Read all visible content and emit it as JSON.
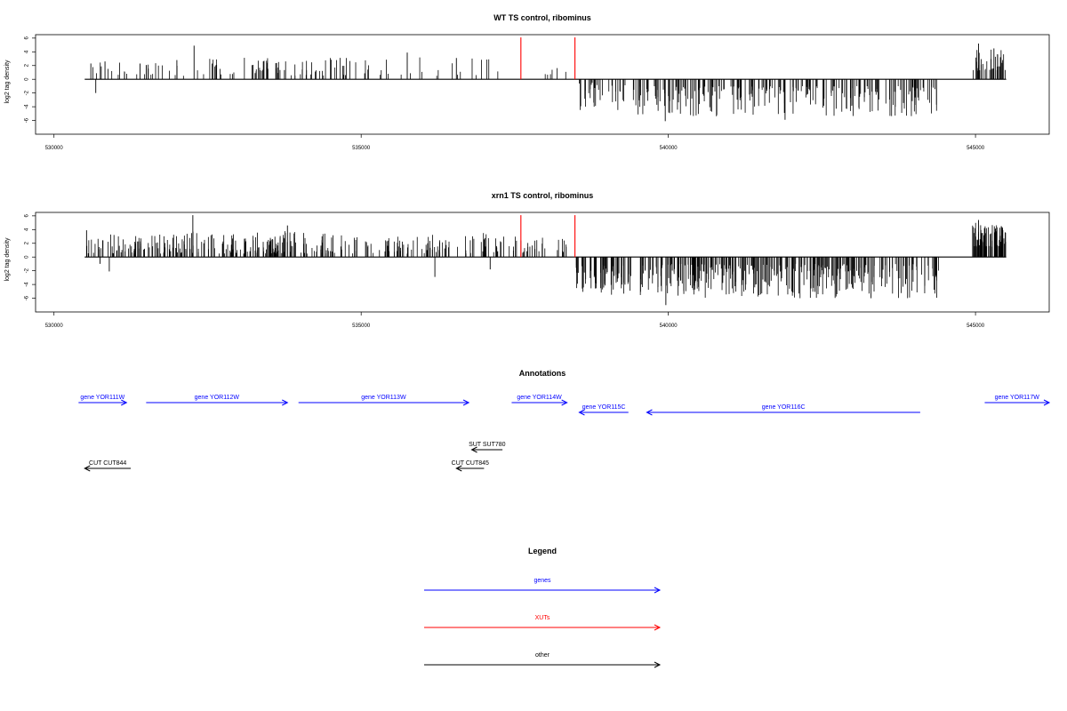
{
  "panels": [
    {
      "title": "WT TS control, ribominus",
      "ylabel": "log2 tag density",
      "ylim": [
        -8,
        6.5
      ],
      "xlim": [
        529700,
        546200
      ],
      "yticks": [
        6,
        4,
        2,
        0,
        -2,
        -4,
        -6
      ],
      "xticks": [
        530000,
        535000,
        540000,
        545000
      ],
      "xtick_labels": [
        "530000",
        "535000",
        "540000",
        "545000"
      ],
      "baseline": [
        530500,
        545500
      ],
      "color": "#000000",
      "highlight_color": "#ff0000",
      "highlights": [
        {
          "x": 537600,
          "y": 6.1
        },
        {
          "x": 538480,
          "y": 6.1
        }
      ],
      "segments": [
        {
          "from": 530500,
          "to": 532500,
          "sign": 1,
          "min": 0.5,
          "max": 2.8,
          "count": 28
        },
        {
          "from": 532500,
          "to": 534500,
          "sign": 1,
          "min": 0.5,
          "max": 3.2,
          "count": 60
        },
        {
          "from": 534500,
          "to": 537300,
          "sign": 1,
          "min": 0.5,
          "max": 3.2,
          "count": 34
        },
        {
          "from": 537800,
          "to": 538400,
          "sign": 1,
          "min": 0.5,
          "max": 1.8,
          "count": 6
        },
        {
          "from": 538550,
          "to": 539300,
          "sign": -1,
          "min": 0.5,
          "max": 4.5,
          "count": 30
        },
        {
          "from": 539400,
          "to": 544400,
          "sign": -1,
          "min": 1.0,
          "max": 5.5,
          "count": 230
        },
        {
          "from": 544950,
          "to": 545500,
          "sign": 1,
          "min": 1.2,
          "max": 4.5,
          "count": 34
        }
      ],
      "peaks": [
        {
          "x": 530600,
          "y": 2.3
        },
        {
          "x": 530680,
          "y": -2.0
        },
        {
          "x": 530830,
          "y": 2.6
        },
        {
          "x": 531400,
          "y": 2.3
        },
        {
          "x": 532000,
          "y": 2.8
        },
        {
          "x": 532280,
          "y": 4.9
        },
        {
          "x": 535750,
          "y": 3.9
        },
        {
          "x": 536550,
          "y": 3.1
        },
        {
          "x": 539950,
          "y": -6.1
        },
        {
          "x": 541900,
          "y": -5.9
        },
        {
          "x": 545050,
          "y": 5.2
        },
        {
          "x": 545300,
          "y": 4.5
        }
      ]
    },
    {
      "title": "xrn1 TS control, ribominus",
      "ylabel": "log2 tag density",
      "ylim": [
        -8,
        6.5
      ],
      "xlim": [
        529700,
        546200
      ],
      "yticks": [
        6,
        4,
        2,
        0,
        -2,
        -4,
        -6
      ],
      "xticks": [
        530000,
        535000,
        540000,
        545000
      ],
      "xtick_labels": [
        "530000",
        "535000",
        "540000",
        "545000"
      ],
      "baseline": [
        530500,
        545500
      ],
      "color": "#000000",
      "highlight_color": "#ff0000",
      "highlights": [
        {
          "x": 537600,
          "y": 6.1
        },
        {
          "x": 538480,
          "y": 6.1
        }
      ],
      "segments": [
        {
          "from": 530500,
          "to": 532200,
          "sign": 1,
          "min": 0.5,
          "max": 3.5,
          "count": 90
        },
        {
          "from": 532200,
          "to": 534000,
          "sign": 1,
          "min": 0.5,
          "max": 3.8,
          "count": 110
        },
        {
          "from": 534000,
          "to": 537300,
          "sign": 1,
          "min": 0.5,
          "max": 3.5,
          "count": 120
        },
        {
          "from": 537300,
          "to": 538450,
          "sign": 1,
          "min": 0.5,
          "max": 3.0,
          "count": 30
        },
        {
          "from": 538500,
          "to": 539400,
          "sign": -1,
          "min": 1.0,
          "max": 5.5,
          "count": 70
        },
        {
          "from": 539400,
          "to": 544400,
          "sign": -1,
          "min": 1.0,
          "max": 6.0,
          "count": 320
        },
        {
          "from": 544950,
          "to": 545500,
          "sign": 1,
          "min": 1.5,
          "max": 5.0,
          "count": 80
        }
      ],
      "peaks": [
        {
          "x": 530530,
          "y": 3.9
        },
        {
          "x": 530750,
          "y": -1.0
        },
        {
          "x": 530900,
          "y": -2.1
        },
        {
          "x": 532260,
          "y": 6.1
        },
        {
          "x": 533800,
          "y": 4.6
        },
        {
          "x": 536200,
          "y": -2.9
        },
        {
          "x": 537100,
          "y": -1.8
        },
        {
          "x": 539960,
          "y": -7.0
        },
        {
          "x": 543300,
          "y": -6.0
        },
        {
          "x": 545050,
          "y": 5.4
        },
        {
          "x": 545420,
          "y": 4.5
        }
      ]
    }
  ],
  "annotations": {
    "title": "Annotations",
    "genes": [
      {
        "label": "gene YOR111W",
        "start": 530400,
        "end": 531180,
        "dir": "+",
        "row": 0
      },
      {
        "label": "gene YOR112W",
        "start": 531500,
        "end": 533800,
        "dir": "+",
        "row": 0
      },
      {
        "label": "gene YOR113W",
        "start": 533980,
        "end": 536750,
        "dir": "+",
        "row": 0
      },
      {
        "label": "gene YOR114W",
        "start": 537450,
        "end": 538350,
        "dir": "+",
        "row": 0
      },
      {
        "label": "gene YOR115C",
        "start": 538550,
        "end": 539350,
        "dir": "-",
        "row": 1
      },
      {
        "label": "gene YOR116C",
        "start": 539650,
        "end": 544100,
        "dir": "-",
        "row": 1
      },
      {
        "label": "gene YOR117W",
        "start": 545150,
        "end": 546200,
        "dir": "+",
        "row": 0
      }
    ],
    "others": [
      {
        "label": "SUT SUT780",
        "start": 536800,
        "end": 537300,
        "dir": "-",
        "row": 2
      },
      {
        "label": "CUT CUT844",
        "start": 530500,
        "end": 531250,
        "dir": "-",
        "row": 3
      },
      {
        "label": "CUT CUT845",
        "start": 536550,
        "end": 537000,
        "dir": "-",
        "row": 3
      }
    ]
  },
  "legend": {
    "title": "Legend",
    "items": [
      {
        "label": "genes",
        "color": "#0000ff"
      },
      {
        "label": "XUTs",
        "color": "#ff0000"
      },
      {
        "label": "other",
        "color": "#000000"
      }
    ]
  },
  "colors": {
    "gene": "#0000ff",
    "xut": "#ff0000",
    "other": "#000000"
  }
}
